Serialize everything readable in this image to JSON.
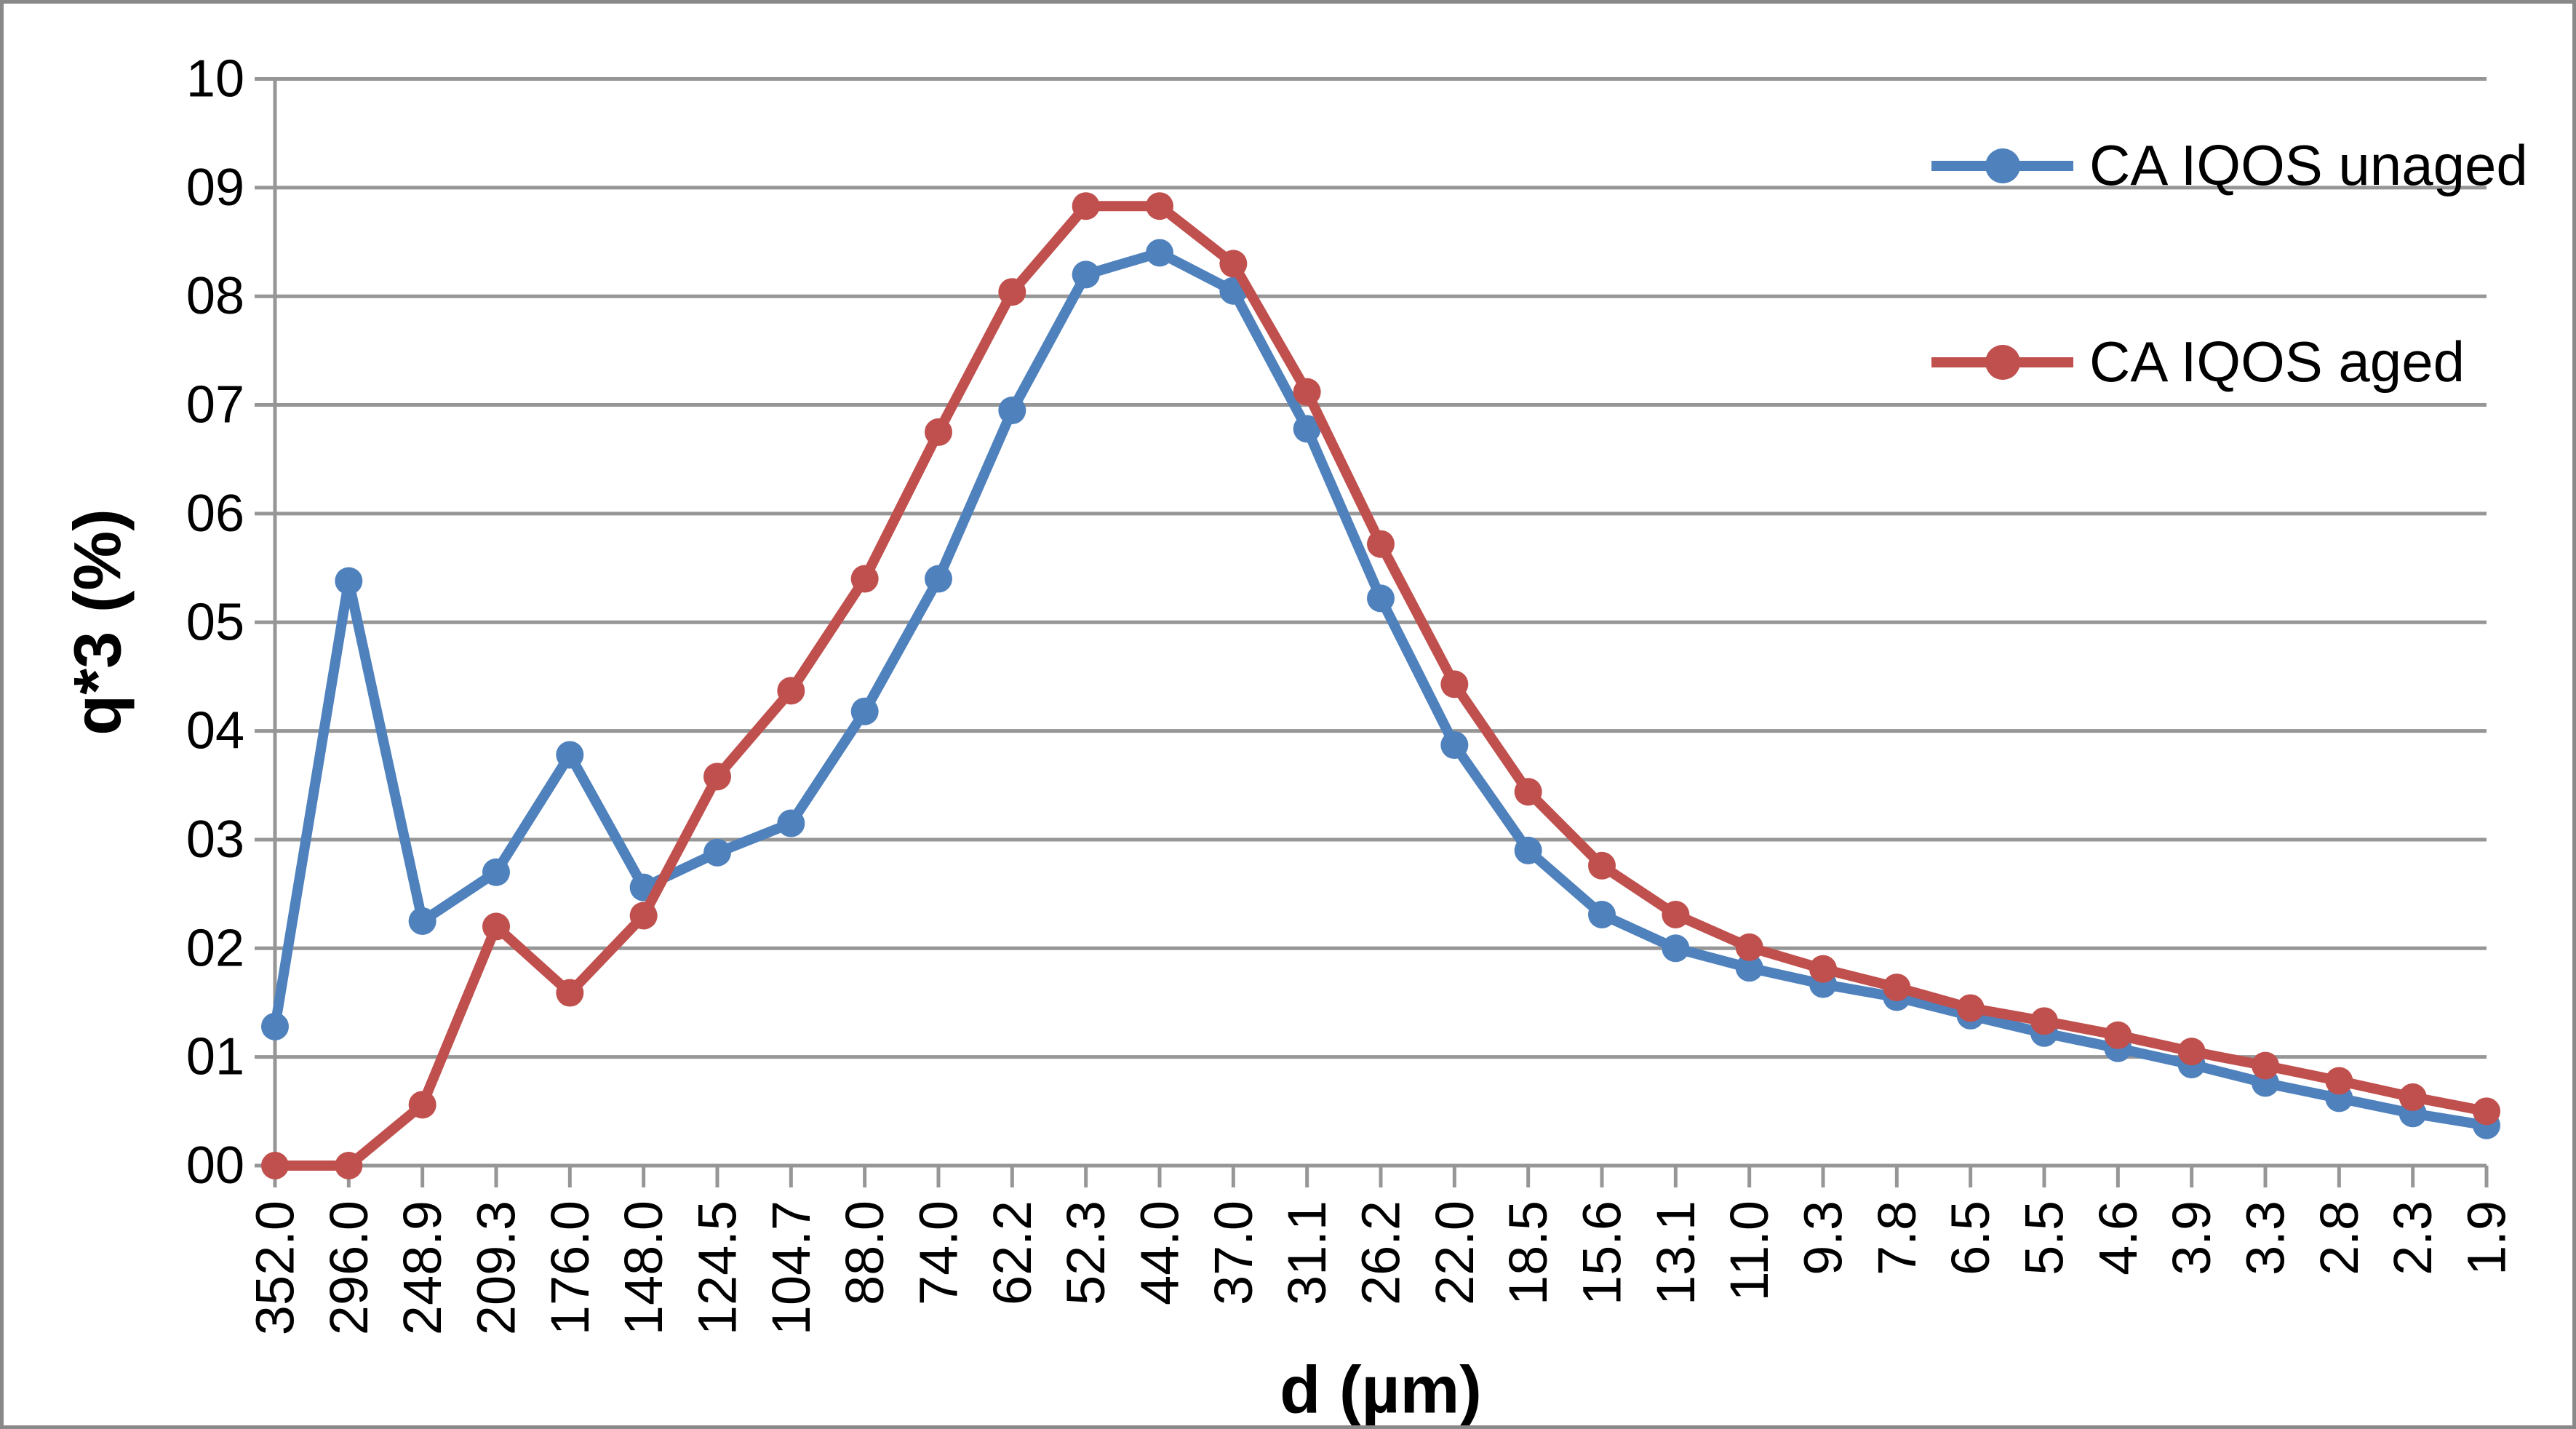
{
  "frame": {
    "border_color": "#898989",
    "background": "#ffffff"
  },
  "colors": {
    "gridline": "#969696",
    "axis": "#969696",
    "tick": "#969696",
    "text": "#000000",
    "series_unaged": "#4F81BD",
    "series_aged": "#C0504D"
  },
  "legend": {
    "position": "top-right",
    "items": [
      {
        "label": "CA IQOS unaged",
        "color": "#4F81BD"
      },
      {
        "label": "CA IQOS aged",
        "color": "#C0504D"
      }
    ]
  },
  "chart_data": {
    "type": "line",
    "title": "",
    "xlabel": "d (µm)",
    "ylabel": "q*3 (%)",
    "ylim": [
      0,
      10
    ],
    "grid": true,
    "legend_position": "top-right",
    "y_tick_labels": [
      "00",
      "01",
      "02",
      "03",
      "04",
      "05",
      "06",
      "07",
      "08",
      "09",
      "10"
    ],
    "categories": [
      "352.0",
      "296.0",
      "248.9",
      "209.3",
      "176.0",
      "148.0",
      "124.5",
      "104.7",
      "88.0",
      "74.0",
      "62.2",
      "52.3",
      "44.0",
      "37.0",
      "31.1",
      "26.2",
      "22.0",
      "18.5",
      "15.6",
      "13.1",
      "11.0",
      "9.3",
      "7.8",
      "6.5",
      "5.5",
      "4.6",
      "3.9",
      "3.3",
      "2.8",
      "2.3",
      "1.9"
    ],
    "series": [
      {
        "name": "CA IQOS unaged",
        "color": "#4F81BD",
        "values": [
          1.28,
          5.38,
          2.25,
          2.7,
          3.78,
          2.56,
          2.88,
          3.15,
          4.18,
          5.4,
          6.95,
          8.2,
          8.4,
          8.05,
          6.78,
          5.22,
          3.87,
          2.9,
          2.31,
          2.0,
          1.82,
          1.67,
          1.55,
          1.38,
          1.22,
          1.08,
          0.93,
          0.76,
          0.62,
          0.48,
          0.37
        ]
      },
      {
        "name": "CA IQOS aged",
        "color": "#C0504D",
        "values": [
          0.0,
          0.0,
          0.56,
          2.2,
          1.59,
          2.3,
          3.58,
          4.37,
          5.4,
          6.75,
          8.04,
          8.83,
          8.83,
          8.3,
          7.12,
          5.72,
          4.43,
          3.44,
          2.76,
          2.31,
          2.01,
          1.81,
          1.64,
          1.45,
          1.33,
          1.2,
          1.05,
          0.92,
          0.78,
          0.63,
          0.5
        ]
      }
    ]
  }
}
